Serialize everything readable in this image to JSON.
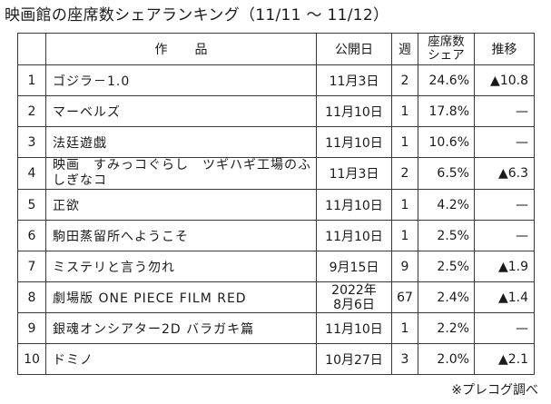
{
  "title": "映画館の座席数シェアランキング（11/11 ～ 11/12）",
  "headers": {
    "no": "",
    "title": "作品",
    "release": "公開日",
    "week": "週",
    "share_line1": "座席数",
    "share_line2": "シェア",
    "trend": "推移"
  },
  "rows": [
    {
      "no": "1",
      "title": "ゴジラ－1.0",
      "release": "11月3日",
      "week": "2",
      "share": "24.6%",
      "trend": "▲10.8"
    },
    {
      "no": "2",
      "title": "マーベルズ",
      "release": "11月10日",
      "week": "1",
      "share": "17.8%",
      "trend": "—"
    },
    {
      "no": "3",
      "title": "法廷遊戯",
      "release": "11月10日",
      "week": "1",
      "share": "10.6%",
      "trend": "—"
    },
    {
      "no": "4",
      "title": "映画　すみっコぐらし　ツギハギ工場のふしぎなコ",
      "release": "11月3日",
      "week": "2",
      "share": "6.5%",
      "trend": "▲6.3"
    },
    {
      "no": "5",
      "title": "正欲",
      "release": "11月10日",
      "week": "1",
      "share": "4.2%",
      "trend": "—"
    },
    {
      "no": "6",
      "title": "駒田蒸留所へようこそ",
      "release": "11月10日",
      "week": "1",
      "share": "2.5%",
      "trend": "—"
    },
    {
      "no": "7",
      "title": "ミステリと言う勿れ",
      "release": "9月15日",
      "week": "9",
      "share": "2.5%",
      "trend": "▲1.9"
    },
    {
      "no": "8",
      "title": "劇場版 ONE PIECE FILM RED",
      "release_line1": "2022年",
      "release_line2": "8月6日",
      "week": "67",
      "share": "2.4%",
      "trend": "▲1.4"
    },
    {
      "no": "9",
      "title": "銀魂オンシアター2D バラガキ篇",
      "release": "11月10日",
      "week": "1",
      "share": "2.2%",
      "trend": "—"
    },
    {
      "no": "10",
      "title": "ドミノ",
      "release": "10月27日",
      "week": "3",
      "share": "2.0%",
      "trend": "▲2.1"
    }
  ],
  "footnote": "※プレコグ調べ"
}
